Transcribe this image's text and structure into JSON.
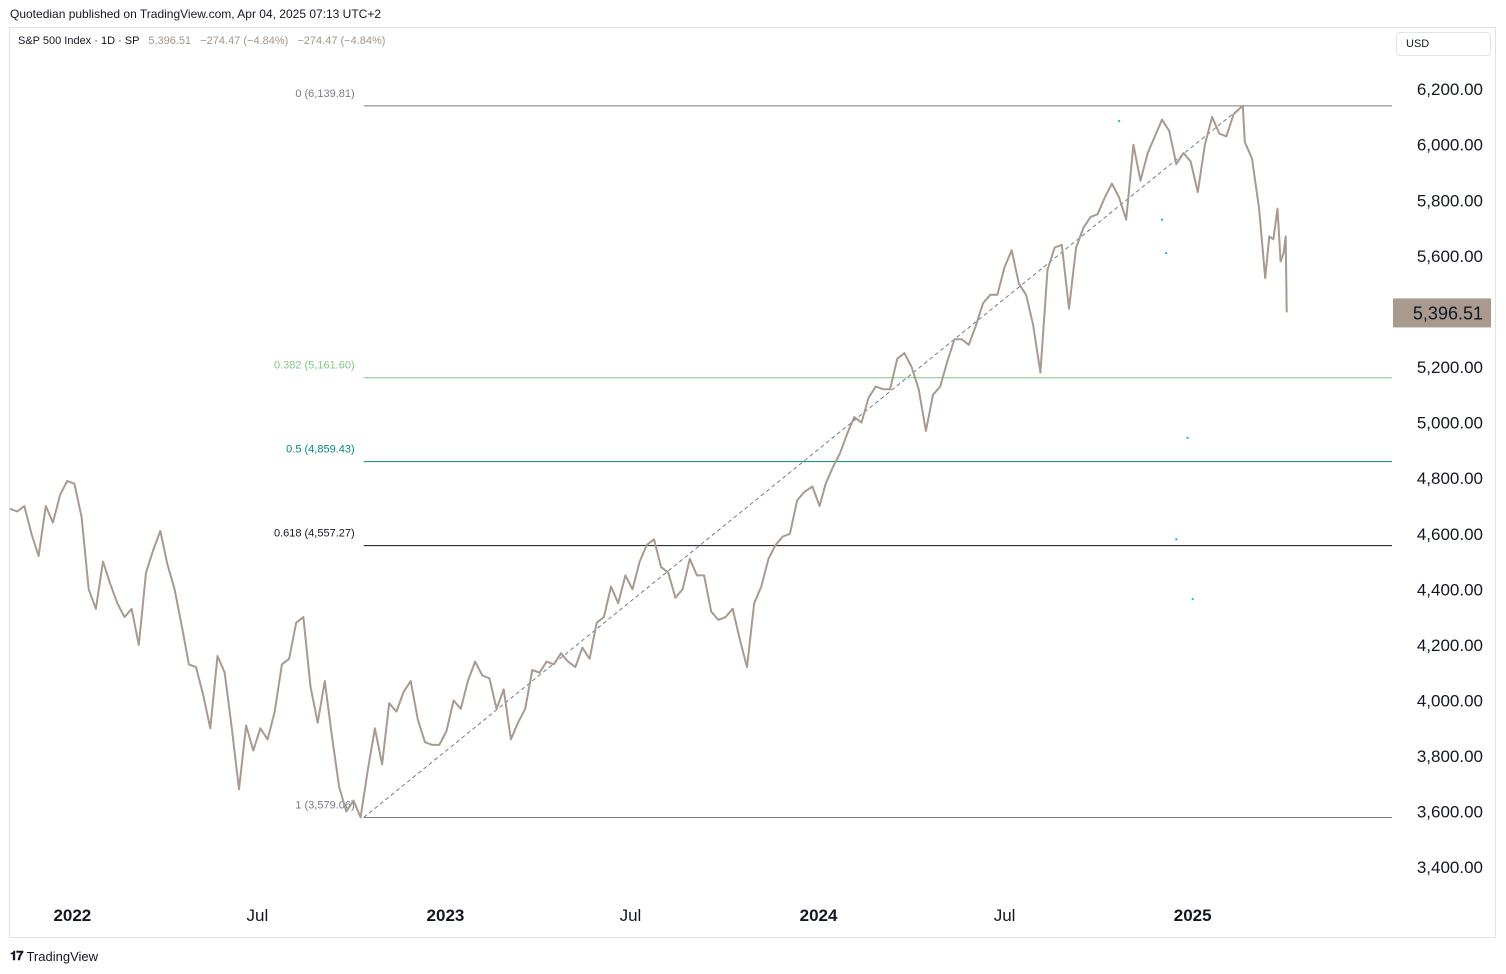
{
  "header": {
    "published": "Quotedian published on TradingView.com, Apr 04, 2025 07:13 UTC+2"
  },
  "legend": {
    "symbol": "S&P 500 Index · 1D · SP",
    "close": "5,396.51",
    "change": "−274.47 (−4.84%)",
    "change2": "−274.47 (−4.84%)"
  },
  "currency_button": "USD",
  "footer": {
    "logo_icon": "tradingview-logo-icon",
    "brand": "TradingView"
  },
  "chart_data": {
    "type": "line",
    "title": "S&P 500 Index · 1D · SP",
    "xlabel": "",
    "ylabel": "",
    "ylim": [
      3300,
      6420
    ],
    "x_range": [
      "2021-11-01",
      "2025-07-15"
    ],
    "grid": false,
    "price_label": "5,396.51",
    "y_ticks": [
      {
        "value": 6200,
        "label": "6,200.00"
      },
      {
        "value": 6000,
        "label": "6,000.00"
      },
      {
        "value": 5800,
        "label": "5,800.00"
      },
      {
        "value": 5600,
        "label": "5,600.00"
      },
      {
        "value": 5200,
        "label": "5,200.00"
      },
      {
        "value": 5000,
        "label": "5,000.00"
      },
      {
        "value": 4800,
        "label": "4,800.00"
      },
      {
        "value": 4600,
        "label": "4,600.00"
      },
      {
        "value": 4400,
        "label": "4,400.00"
      },
      {
        "value": 4200,
        "label": "4,200.00"
      },
      {
        "value": 4000,
        "label": "4,000.00"
      },
      {
        "value": 3800,
        "label": "3,800.00"
      },
      {
        "value": 3600,
        "label": "3,600.00"
      },
      {
        "value": 3400,
        "label": "3,400.00"
      }
    ],
    "x_ticks": [
      {
        "date": "2022-01-01",
        "label": "2022",
        "bold": true
      },
      {
        "date": "2022-07-01",
        "label": "Jul",
        "bold": false
      },
      {
        "date": "2023-01-01",
        "label": "2023",
        "bold": true
      },
      {
        "date": "2023-07-01",
        "label": "Jul",
        "bold": false
      },
      {
        "date": "2024-01-01",
        "label": "2024",
        "bold": true
      },
      {
        "date": "2024-07-01",
        "label": "Jul",
        "bold": false
      },
      {
        "date": "2025-01-01",
        "label": "2025",
        "bold": true
      }
    ],
    "fib_levels": [
      {
        "label": "0 (6,139.81)",
        "value": 6139.81,
        "color": "#787b86"
      },
      {
        "label": "0.382 (5,161.60)",
        "value": 5161.6,
        "color": "#81c784"
      },
      {
        "label": "0.5 (4,859.43)",
        "value": 4859.43,
        "color": "#00897b"
      },
      {
        "label": "0.618 (4,557.27)",
        "value": 4557.27,
        "color": "#131722"
      },
      {
        "label": "1 (3,579.06)",
        "value": 3579.06,
        "color": "#787b86"
      }
    ],
    "fib_trendline": [
      {
        "date": "2022-10-13",
        "value": 3579.06
      },
      {
        "date": "2025-02-19",
        "value": 6139.81
      }
    ],
    "series": [
      {
        "color": "#a89a8e",
        "points": [
          [
            "2021-11-01",
            4690
          ],
          [
            "2021-11-08",
            4680
          ],
          [
            "2021-11-15",
            4700
          ],
          [
            "2021-11-22",
            4600
          ],
          [
            "2021-11-29",
            4520
          ],
          [
            "2021-12-06",
            4700
          ],
          [
            "2021-12-13",
            4640
          ],
          [
            "2021-12-20",
            4740
          ],
          [
            "2021-12-27",
            4790
          ],
          [
            "2022-01-03",
            4780
          ],
          [
            "2022-01-10",
            4660
          ],
          [
            "2022-01-17",
            4400
          ],
          [
            "2022-01-24",
            4330
          ],
          [
            "2022-01-31",
            4500
          ],
          [
            "2022-02-07",
            4420
          ],
          [
            "2022-02-14",
            4350
          ],
          [
            "2022-02-21",
            4300
          ],
          [
            "2022-02-28",
            4330
          ],
          [
            "2022-03-07",
            4200
          ],
          [
            "2022-03-14",
            4460
          ],
          [
            "2022-03-21",
            4540
          ],
          [
            "2022-03-28",
            4610
          ],
          [
            "2022-04-04",
            4490
          ],
          [
            "2022-04-11",
            4400
          ],
          [
            "2022-04-18",
            4270
          ],
          [
            "2022-04-25",
            4130
          ],
          [
            "2022-05-02",
            4120
          ],
          [
            "2022-05-09",
            4020
          ],
          [
            "2022-05-16",
            3900
          ],
          [
            "2022-05-23",
            4160
          ],
          [
            "2022-05-30",
            4100
          ],
          [
            "2022-06-06",
            3900
          ],
          [
            "2022-06-13",
            3680
          ],
          [
            "2022-06-20",
            3910
          ],
          [
            "2022-06-27",
            3820
          ],
          [
            "2022-07-04",
            3900
          ],
          [
            "2022-07-11",
            3860
          ],
          [
            "2022-07-18",
            3960
          ],
          [
            "2022-07-25",
            4130
          ],
          [
            "2022-08-01",
            4150
          ],
          [
            "2022-08-08",
            4280
          ],
          [
            "2022-08-15",
            4300
          ],
          [
            "2022-08-22",
            4050
          ],
          [
            "2022-08-29",
            3920
          ],
          [
            "2022-09-05",
            4070
          ],
          [
            "2022-09-12",
            3870
          ],
          [
            "2022-09-19",
            3690
          ],
          [
            "2022-09-26",
            3600
          ],
          [
            "2022-10-03",
            3640
          ],
          [
            "2022-10-10",
            3580
          ],
          [
            "2022-10-17",
            3750
          ],
          [
            "2022-10-24",
            3900
          ],
          [
            "2022-10-31",
            3770
          ],
          [
            "2022-11-07",
            3990
          ],
          [
            "2022-11-14",
            3960
          ],
          [
            "2022-11-21",
            4030
          ],
          [
            "2022-11-28",
            4070
          ],
          [
            "2022-12-05",
            3930
          ],
          [
            "2022-12-12",
            3850
          ],
          [
            "2022-12-19",
            3840
          ],
          [
            "2022-12-26",
            3840
          ],
          [
            "2023-01-02",
            3890
          ],
          [
            "2023-01-09",
            4000
          ],
          [
            "2023-01-16",
            3970
          ],
          [
            "2023-01-23",
            4070
          ],
          [
            "2023-01-30",
            4140
          ],
          [
            "2023-02-06",
            4090
          ],
          [
            "2023-02-13",
            4080
          ],
          [
            "2023-02-20",
            3970
          ],
          [
            "2023-02-27",
            4040
          ],
          [
            "2023-03-06",
            3860
          ],
          [
            "2023-03-13",
            3920
          ],
          [
            "2023-03-20",
            3970
          ],
          [
            "2023-03-27",
            4110
          ],
          [
            "2023-04-03",
            4100
          ],
          [
            "2023-04-10",
            4140
          ],
          [
            "2023-04-17",
            4130
          ],
          [
            "2023-04-24",
            4170
          ],
          [
            "2023-05-01",
            4140
          ],
          [
            "2023-05-08",
            4120
          ],
          [
            "2023-05-15",
            4190
          ],
          [
            "2023-05-22",
            4150
          ],
          [
            "2023-05-29",
            4280
          ],
          [
            "2023-06-05",
            4300
          ],
          [
            "2023-06-12",
            4410
          ],
          [
            "2023-06-19",
            4350
          ],
          [
            "2023-06-26",
            4450
          ],
          [
            "2023-07-03",
            4400
          ],
          [
            "2023-07-10",
            4500
          ],
          [
            "2023-07-17",
            4560
          ],
          [
            "2023-07-24",
            4580
          ],
          [
            "2023-07-31",
            4480
          ],
          [
            "2023-08-07",
            4460
          ],
          [
            "2023-08-14",
            4370
          ],
          [
            "2023-08-21",
            4400
          ],
          [
            "2023-08-28",
            4510
          ],
          [
            "2023-09-04",
            4450
          ],
          [
            "2023-09-11",
            4450
          ],
          [
            "2023-09-18",
            4320
          ],
          [
            "2023-09-25",
            4290
          ],
          [
            "2023-10-02",
            4300
          ],
          [
            "2023-10-09",
            4330
          ],
          [
            "2023-10-16",
            4220
          ],
          [
            "2023-10-23",
            4120
          ],
          [
            "2023-10-30",
            4350
          ],
          [
            "2023-11-06",
            4410
          ],
          [
            "2023-11-13",
            4510
          ],
          [
            "2023-11-20",
            4560
          ],
          [
            "2023-11-27",
            4590
          ],
          [
            "2023-12-04",
            4600
          ],
          [
            "2023-12-11",
            4720
          ],
          [
            "2023-12-18",
            4750
          ],
          [
            "2023-12-26",
            4770
          ],
          [
            "2024-01-02",
            4700
          ],
          [
            "2024-01-08",
            4780
          ],
          [
            "2024-01-15",
            4840
          ],
          [
            "2024-01-22",
            4890
          ],
          [
            "2024-01-29",
            4960
          ],
          [
            "2024-02-05",
            5020
          ],
          [
            "2024-02-12",
            5000
          ],
          [
            "2024-02-19",
            5090
          ],
          [
            "2024-02-26",
            5130
          ],
          [
            "2024-03-04",
            5120
          ],
          [
            "2024-03-11",
            5120
          ],
          [
            "2024-03-18",
            5230
          ],
          [
            "2024-03-25",
            5250
          ],
          [
            "2024-04-01",
            5200
          ],
          [
            "2024-04-08",
            5120
          ],
          [
            "2024-04-15",
            4970
          ],
          [
            "2024-04-22",
            5100
          ],
          [
            "2024-04-29",
            5130
          ],
          [
            "2024-05-06",
            5220
          ],
          [
            "2024-05-13",
            5300
          ],
          [
            "2024-05-20",
            5300
          ],
          [
            "2024-05-27",
            5280
          ],
          [
            "2024-06-03",
            5350
          ],
          [
            "2024-06-10",
            5430
          ],
          [
            "2024-06-17",
            5460
          ],
          [
            "2024-06-24",
            5460
          ],
          [
            "2024-07-01",
            5560
          ],
          [
            "2024-07-08",
            5620
          ],
          [
            "2024-07-15",
            5500
          ],
          [
            "2024-07-22",
            5460
          ],
          [
            "2024-07-29",
            5350
          ],
          [
            "2024-08-05",
            5180
          ],
          [
            "2024-08-12",
            5550
          ],
          [
            "2024-08-19",
            5630
          ],
          [
            "2024-08-26",
            5640
          ],
          [
            "2024-09-02",
            5410
          ],
          [
            "2024-09-09",
            5630
          ],
          [
            "2024-09-16",
            5700
          ],
          [
            "2024-09-23",
            5740
          ],
          [
            "2024-09-30",
            5750
          ],
          [
            "2024-10-07",
            5810
          ],
          [
            "2024-10-14",
            5860
          ],
          [
            "2024-10-21",
            5810
          ],
          [
            "2024-10-28",
            5730
          ],
          [
            "2024-11-04",
            6000
          ],
          [
            "2024-11-11",
            5870
          ],
          [
            "2024-11-18",
            5970
          ],
          [
            "2024-11-25",
            6030
          ],
          [
            "2024-12-02",
            6090
          ],
          [
            "2024-12-09",
            6050
          ],
          [
            "2024-12-16",
            5930
          ],
          [
            "2024-12-23",
            5970
          ],
          [
            "2024-12-30",
            5940
          ],
          [
            "2025-01-06",
            5830
          ],
          [
            "2025-01-13",
            6000
          ],
          [
            "2025-01-20",
            6100
          ],
          [
            "2025-01-27",
            6040
          ],
          [
            "2025-02-03",
            6030
          ],
          [
            "2025-02-10",
            6110
          ],
          [
            "2025-02-19",
            6140
          ],
          [
            "2025-02-21",
            6010
          ],
          [
            "2025-02-28",
            5950
          ],
          [
            "2025-03-07",
            5770
          ],
          [
            "2025-03-13",
            5520
          ],
          [
            "2025-03-17",
            5670
          ],
          [
            "2025-03-21",
            5660
          ],
          [
            "2025-03-25",
            5770
          ],
          [
            "2025-03-28",
            5580
          ],
          [
            "2025-03-31",
            5610
          ],
          [
            "2025-04-02",
            5670
          ],
          [
            "2025-04-03",
            5396.51
          ]
        ]
      }
    ],
    "scatter_dots": [
      {
        "date": "2024-10-21",
        "value": 6085
      },
      {
        "date": "2024-12-02",
        "value": 5730
      },
      {
        "date": "2024-12-06",
        "value": 5610
      },
      {
        "date": "2024-12-16",
        "value": 4580
      },
      {
        "date": "2024-12-27",
        "value": 4945
      },
      {
        "date": "2025-01-01",
        "value": 4365
      }
    ]
  }
}
